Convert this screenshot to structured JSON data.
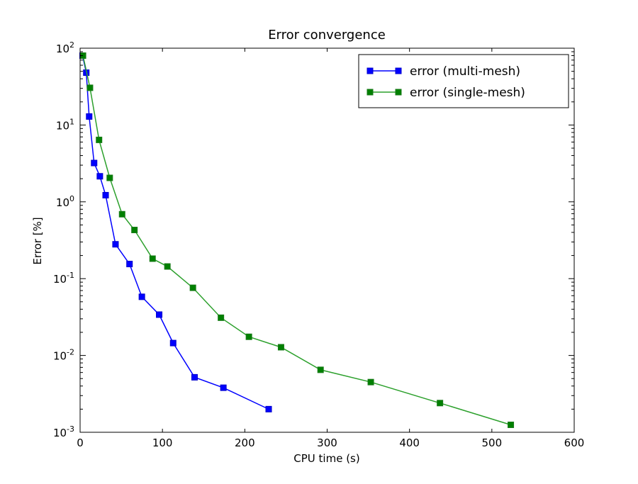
{
  "chart_data": {
    "type": "line",
    "title": "Error convergence",
    "xlabel": "CPU time (s)",
    "ylabel": "Error [%]",
    "xlim": [
      0,
      600
    ],
    "ylim": [
      0.001,
      100
    ],
    "yscale": "log",
    "grid": false,
    "legend_position": "top-right",
    "x_ticks": [
      {
        "value": 0,
        "label": "0"
      },
      {
        "value": 100,
        "label": "100"
      },
      {
        "value": 200,
        "label": "200"
      },
      {
        "value": 300,
        "label": "300"
      },
      {
        "value": 400,
        "label": "400"
      },
      {
        "value": 500,
        "label": "500"
      },
      {
        "value": 600,
        "label": "600"
      }
    ],
    "y_ticks": [
      {
        "value": 100,
        "base": "10",
        "exp": "2"
      },
      {
        "value": 10,
        "base": "10",
        "exp": "1"
      },
      {
        "value": 1,
        "base": "10",
        "exp": "0"
      },
      {
        "value": 0.1,
        "base": "10",
        "exp": "-1"
      },
      {
        "value": 0.01,
        "base": "10",
        "exp": "-2"
      },
      {
        "value": 0.001,
        "base": "10",
        "exp": "-3"
      }
    ],
    "series": [
      {
        "name": "error (multi-mesh)",
        "color": "#0000ff",
        "marker_color": "#0000cc",
        "points": [
          [
            3,
            80
          ],
          [
            7.5,
            48
          ],
          [
            11,
            12.9
          ],
          [
            17,
            3.2
          ],
          [
            24,
            2.15
          ],
          [
            31,
            1.22
          ],
          [
            43,
            0.28
          ],
          [
            60,
            0.155
          ],
          [
            75,
            0.058
          ],
          [
            96,
            0.034
          ],
          [
            113,
            0.0145
          ],
          [
            139,
            0.0052
          ],
          [
            174,
            0.0038
          ],
          [
            229,
            0.002
          ]
        ]
      },
      {
        "name": "error (single-mesh)",
        "color": "#2ca02c",
        "marker_color": "#1a7a1a",
        "points": [
          [
            3.5,
            80
          ],
          [
            12,
            30.5
          ],
          [
            23,
            6.4
          ],
          [
            36,
            2.05
          ],
          [
            51,
            0.69
          ],
          [
            66,
            0.43
          ],
          [
            88,
            0.182
          ],
          [
            106,
            0.144
          ],
          [
            137,
            0.076
          ],
          [
            171,
            0.031
          ],
          [
            205,
            0.0175
          ],
          [
            244,
            0.0128
          ],
          [
            292,
            0.0065
          ],
          [
            353,
            0.0045
          ],
          [
            437,
            0.0024
          ],
          [
            523,
            0.00125
          ]
        ]
      }
    ]
  }
}
